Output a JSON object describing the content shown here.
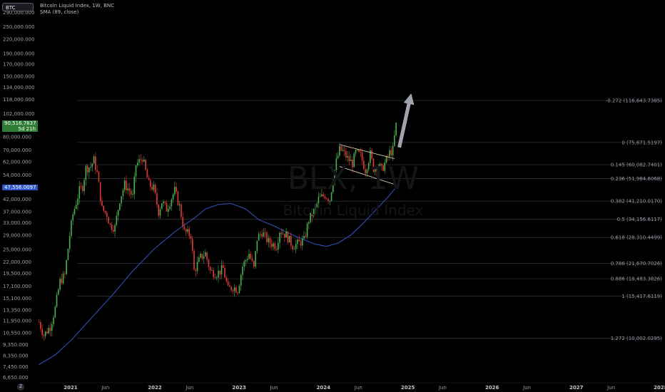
{
  "symbol_chip": "BTC",
  "legend": {
    "line1": "Bitcoin Liquid Index, 1W, BNC",
    "line2": "SMA (89, close)"
  },
  "watermark": {
    "ticker": "BLX, 1W",
    "name": "Bitcoin Liquid Index"
  },
  "price_tags": {
    "last_price": "90,516.7837",
    "countdown": "5d 21h",
    "sma_value": "47,556.0097"
  },
  "colors": {
    "background": "#000000",
    "up_candle": "#4caf50",
    "down_candle": "#e53935",
    "sma_line": "#2f4fb4",
    "fib_line": "#3a3d45",
    "fib_text": "#9a9ea8",
    "axis_text": "#9ba0aa",
    "channel_line": "#d6cfa8",
    "arrow": "#9ea2aa",
    "last_price_tag": "#2e7d32",
    "sma_tag": "#2f56c9"
  },
  "chart_data": {
    "type": "candlestick",
    "title": "Bitcoin Liquid Index, 1W, BNC",
    "scale": "log",
    "y_tick_labels": [
      "290,000.000",
      "250,000.000",
      "220,000.000",
      "190,000.000",
      "170,000.000",
      "150,000.000",
      "134,000.000",
      "118,000.000",
      "102,000.000",
      "80,000.000",
      "70,000.000",
      "62,000.000",
      "54,000.000",
      "42,000.000",
      "37,000.000",
      "33,000.000",
      "29,000.000",
      "25,000.000",
      "22,000.000",
      "19,500.000",
      "17,100.000",
      "15,100.000",
      "13,350.000",
      "11,950.000",
      "10,550.000",
      "9,350.000",
      "8,350.000",
      "7,450.000",
      "6,650.000"
    ],
    "y_tick_values": [
      290000,
      250000,
      220000,
      190000,
      170000,
      150000,
      134000,
      118000,
      102000,
      80000,
      70000,
      62000,
      54000,
      42000,
      37000,
      33000,
      29000,
      25000,
      22000,
      19500,
      17100,
      15100,
      13350,
      11950,
      10550,
      9350,
      8350,
      7450,
      6650
    ],
    "x_tick_labels": [
      "2021",
      "Jun",
      "2022",
      "Jun",
      "2023",
      "Jun",
      "2024",
      "Jun",
      "2025",
      "Jun",
      "2026",
      "Jun",
      "2027",
      "Jun",
      "2028"
    ],
    "x_tick_dates": [
      "2021-01-01",
      "2021-06-01",
      "2022-01-01",
      "2022-06-01",
      "2023-01-01",
      "2023-06-01",
      "2024-01-01",
      "2024-06-01",
      "2025-01-01",
      "2025-06-01",
      "2026-01-01",
      "2026-06-01",
      "2027-01-01",
      "2027-06-01",
      "2028-01-01"
    ],
    "x_range": [
      "2020-08-15",
      "2028-01-20"
    ],
    "y_range": [
      6300,
      330000
    ],
    "fib_levels": [
      {
        "label": "-0.272 (116,643.7385)",
        "value": 116643.7385
      },
      {
        "label": "0 (75,671.5197)",
        "value": 75671.5197
      },
      {
        "label": "0.145 (60,082.7401)",
        "value": 60082.7401
      },
      {
        "label": "0.236 (51,984.6068)",
        "value": 51984.6068
      },
      {
        "label": "0.382 (41,210.0170)",
        "value": 41210.017
      },
      {
        "label": "0.5 (34,156.6117)",
        "value": 34156.6117
      },
      {
        "label": "0.618 (28,310.4499)",
        "value": 28310.4499
      },
      {
        "label": "0.786 (21,670.7026)",
        "value": 21670.7026
      },
      {
        "label": "0.886 (18,483.3826)",
        "value": 18483.3826
      },
      {
        "label": "1 (15,417.6119)",
        "value": 15417.6119
      },
      {
        "label": "1.272 (10,002.0295)",
        "value": 10002.0295
      }
    ],
    "close_path": [
      [
        "2020-08-17",
        11800
      ],
      [
        "2020-09-07",
        10300
      ],
      [
        "2020-10-05",
        11300
      ],
      [
        "2020-10-26",
        13600
      ],
      [
        "2020-11-16",
        18000
      ],
      [
        "2020-12-07",
        19200
      ],
      [
        "2020-12-28",
        29000
      ],
      [
        "2021-01-11",
        36000
      ],
      [
        "2021-02-08",
        46000
      ],
      [
        "2021-02-22",
        48000
      ],
      [
        "2021-03-08",
        58000
      ],
      [
        "2021-03-29",
        59000
      ],
      [
        "2021-04-12",
        63000
      ],
      [
        "2021-04-26",
        55000
      ],
      [
        "2021-05-17",
        38000
      ],
      [
        "2021-06-07",
        36000
      ],
      [
        "2021-06-21",
        32000
      ],
      [
        "2021-07-12",
        31500
      ],
      [
        "2021-08-02",
        42000
      ],
      [
        "2021-08-23",
        49000
      ],
      [
        "2021-09-13",
        46000
      ],
      [
        "2021-09-27",
        43000
      ],
      [
        "2021-10-11",
        60000
      ],
      [
        "2021-10-25",
        62000
      ],
      [
        "2021-11-08",
        65000
      ],
      [
        "2021-11-22",
        56000
      ],
      [
        "2021-12-06",
        49000
      ],
      [
        "2021-12-27",
        47000
      ],
      [
        "2022-01-17",
        37000
      ],
      [
        "2022-01-31",
        41000
      ],
      [
        "2022-02-21",
        38000
      ],
      [
        "2022-03-28",
        46000
      ],
      [
        "2022-04-18",
        39000
      ],
      [
        "2022-05-09",
        30000
      ],
      [
        "2022-06-06",
        29000
      ],
      [
        "2022-06-20",
        20000
      ],
      [
        "2022-07-18",
        23000
      ],
      [
        "2022-08-08",
        24000
      ],
      [
        "2022-08-29",
        20000
      ],
      [
        "2022-09-26",
        19500
      ],
      [
        "2022-10-24",
        20500
      ],
      [
        "2022-11-14",
        16500
      ],
      [
        "2022-12-05",
        17000
      ],
      [
        "2022-12-26",
        16500
      ],
      [
        "2023-01-16",
        21000
      ],
      [
        "2023-02-13",
        24000
      ],
      [
        "2023-03-06",
        20500
      ],
      [
        "2023-03-20",
        28000
      ],
      [
        "2023-04-10",
        30000
      ],
      [
        "2023-05-08",
        27000
      ],
      [
        "2023-06-12",
        26000
      ],
      [
        "2023-06-26",
        30500
      ],
      [
        "2023-07-24",
        29000
      ],
      [
        "2023-08-21",
        26000
      ],
      [
        "2023-09-11",
        26500
      ],
      [
        "2023-10-09",
        27500
      ],
      [
        "2023-10-30",
        34000
      ],
      [
        "2023-11-27",
        38000
      ],
      [
        "2023-12-11",
        42000
      ],
      [
        "2024-01-08",
        44000
      ],
      [
        "2024-01-29",
        42000
      ],
      [
        "2024-02-12",
        52000
      ],
      [
        "2024-02-26",
        62000
      ],
      [
        "2024-03-11",
        70000
      ],
      [
        "2024-03-25",
        69000
      ],
      [
        "2024-04-15",
        64000
      ],
      [
        "2024-05-06",
        61000
      ],
      [
        "2024-05-20",
        68000
      ],
      [
        "2024-06-10",
        66000
      ],
      [
        "2024-07-01",
        57000
      ],
      [
        "2024-07-22",
        67000
      ],
      [
        "2024-08-05",
        58000
      ],
      [
        "2024-08-26",
        60000
      ],
      [
        "2024-09-09",
        57000
      ],
      [
        "2024-09-30",
        63000
      ],
      [
        "2024-10-14",
        68000
      ],
      [
        "2024-10-28",
        70000
      ],
      [
        "2024-11-04",
        80000
      ],
      [
        "2024-11-11",
        90516.7837
      ]
    ],
    "sma_path": [
      [
        "2020-08-17",
        7600
      ],
      [
        "2020-10-26",
        8400
      ],
      [
        "2021-01-04",
        9800
      ],
      [
        "2021-03-29",
        12200
      ],
      [
        "2021-06-28",
        15500
      ],
      [
        "2021-09-27",
        20000
      ],
      [
        "2021-12-27",
        25000
      ],
      [
        "2022-03-28",
        30000
      ],
      [
        "2022-06-27",
        35000
      ],
      [
        "2022-08-08",
        38000
      ],
      [
        "2022-10-03",
        39800
      ],
      [
        "2022-11-28",
        40200
      ],
      [
        "2023-01-30",
        38000
      ],
      [
        "2023-03-27",
        34000
      ],
      [
        "2023-05-29",
        32000
      ],
      [
        "2023-08-07",
        29500
      ],
      [
        "2023-10-02",
        27800
      ],
      [
        "2023-11-27",
        26400
      ],
      [
        "2024-01-15",
        25800
      ],
      [
        "2024-03-04",
        26700
      ],
      [
        "2024-04-29",
        29000
      ],
      [
        "2024-06-24",
        33000
      ],
      [
        "2024-08-19",
        38000
      ],
      [
        "2024-10-07",
        43000
      ],
      [
        "2024-11-11",
        47556.0097
      ]
    ],
    "channel": {
      "upper": [
        [
          "2024-03-11",
          74000
        ],
        [
          "2024-11-04",
          64000
        ]
      ],
      "lower": [
        [
          "2024-03-11",
          59000
        ],
        [
          "2024-11-04",
          49000
        ]
      ]
    },
    "arrow": {
      "from": [
        "2024-11-25",
        72000
      ],
      "to": [
        "2025-01-15",
        125000
      ]
    }
  },
  "bottom_icon": "Z"
}
